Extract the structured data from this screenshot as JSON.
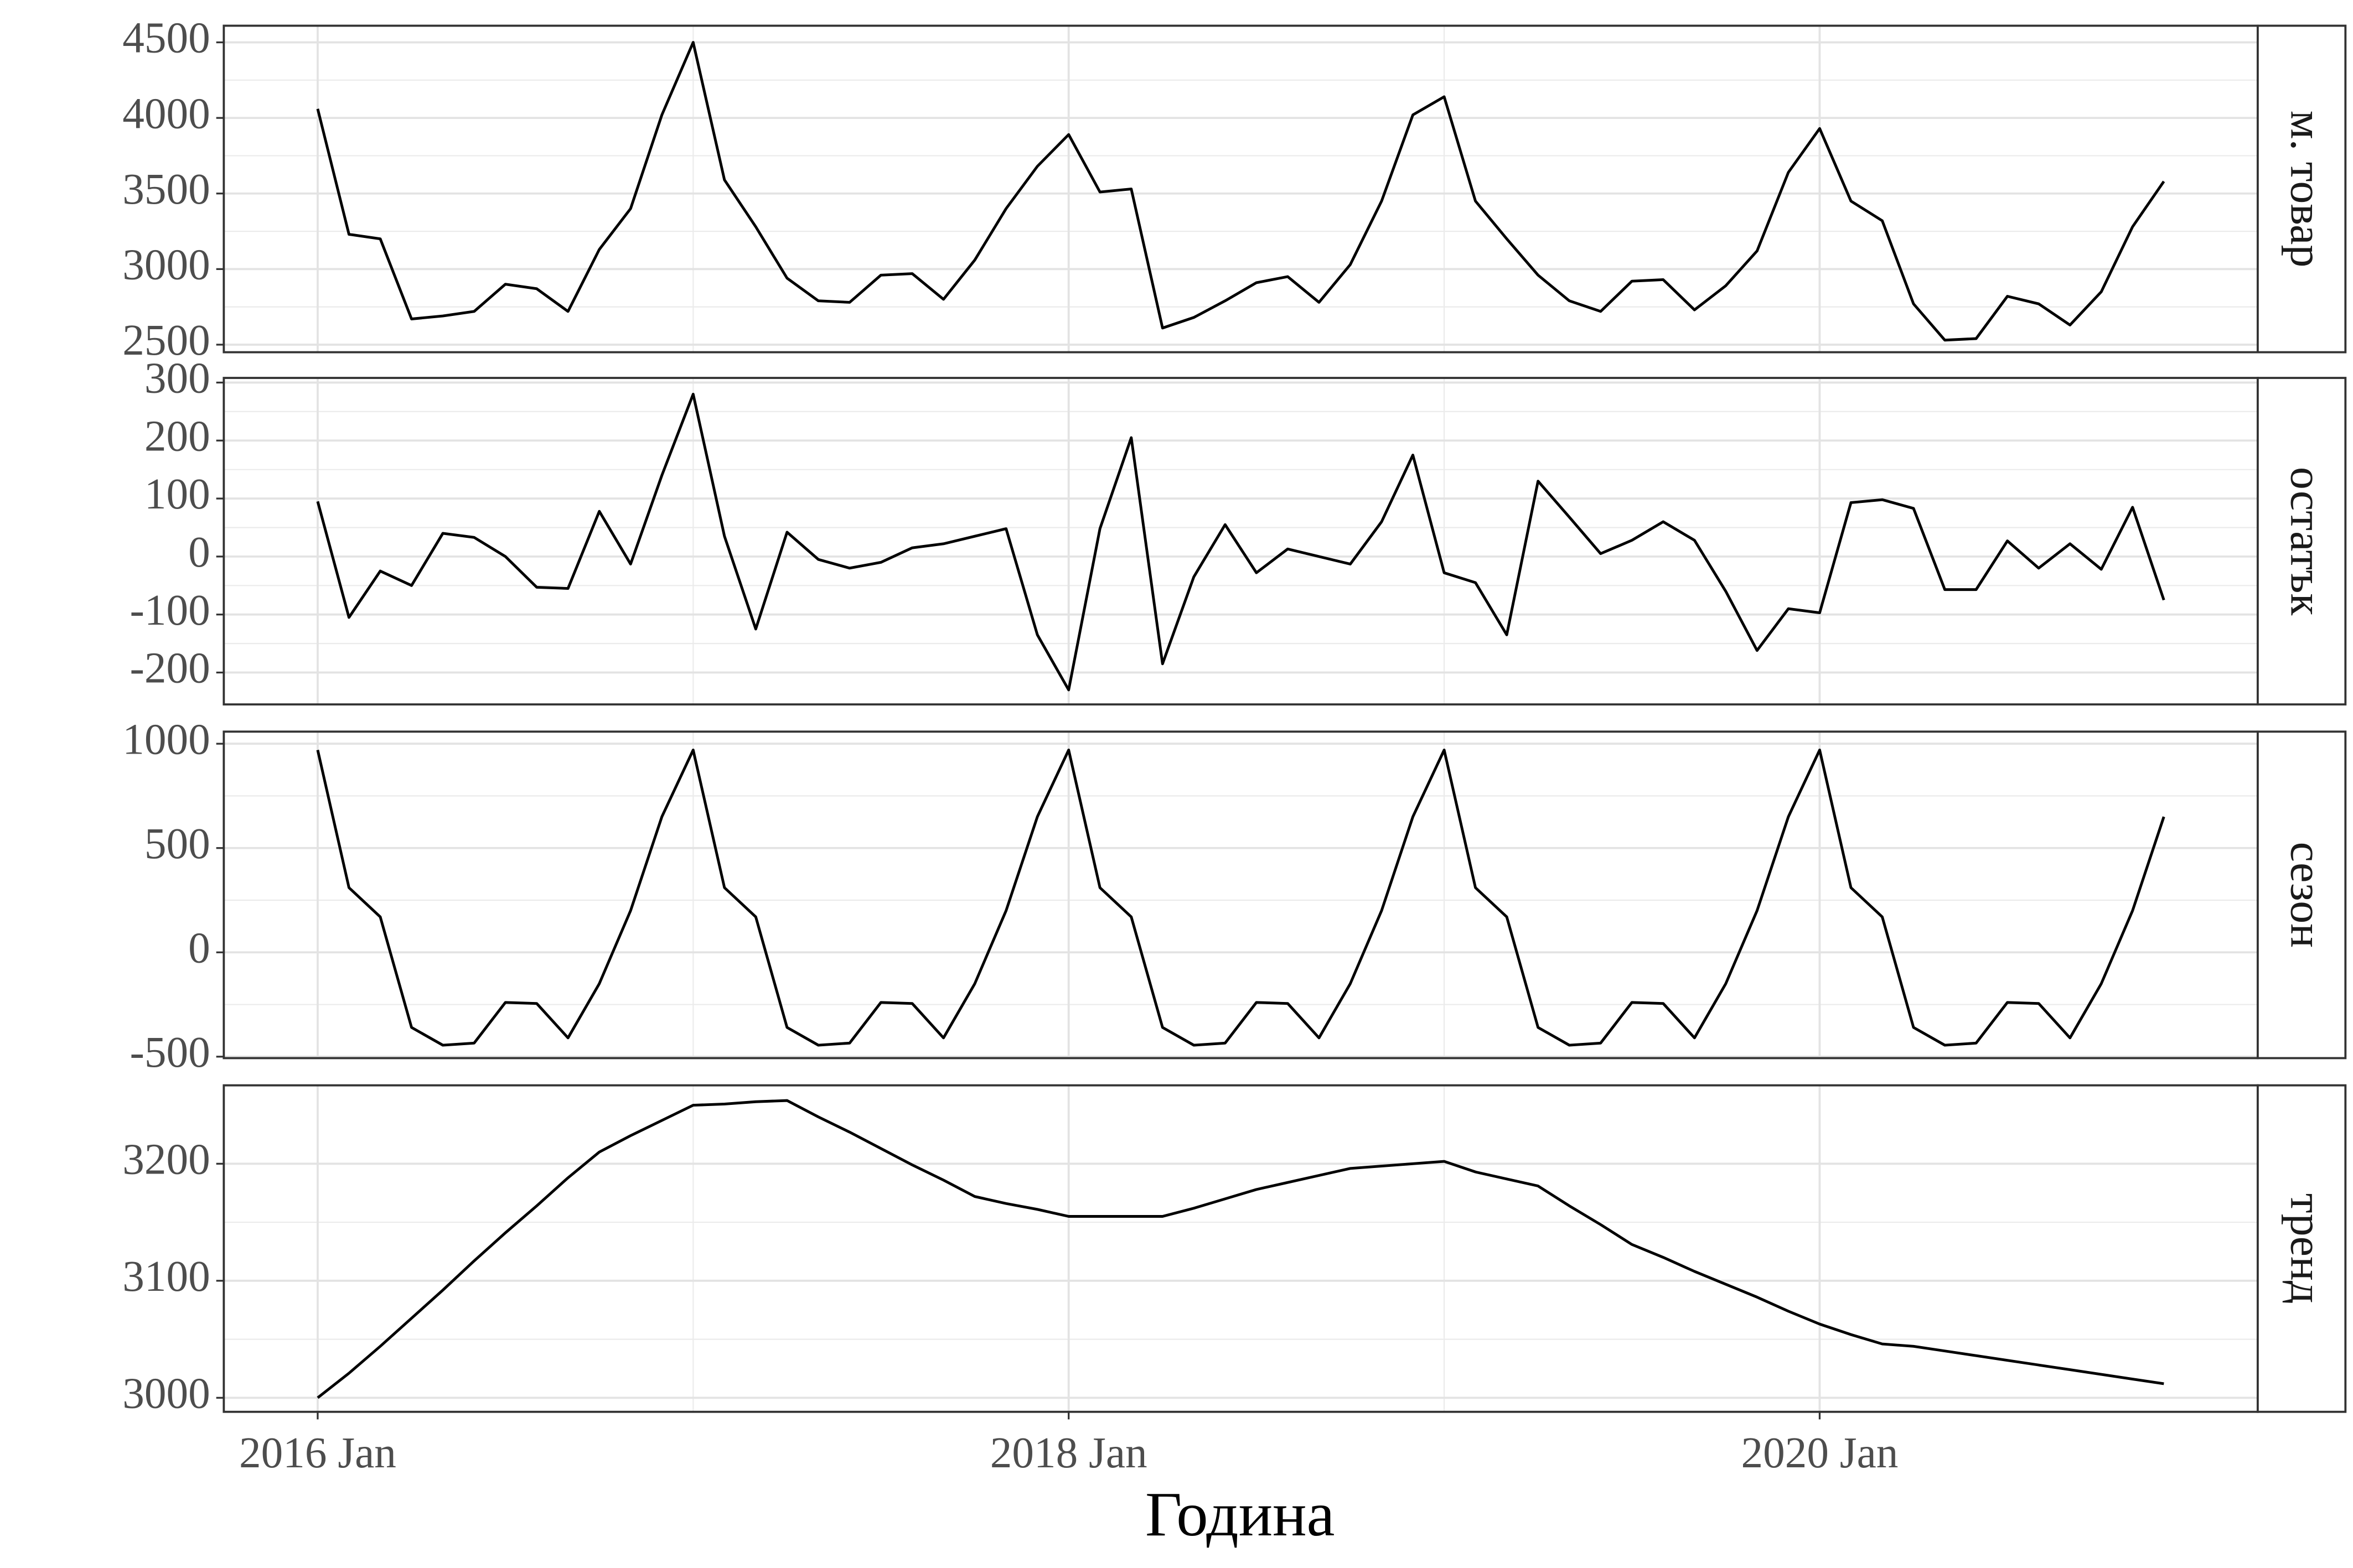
{
  "chart_data": {
    "type": "line",
    "xlabel": "Година",
    "color": "#000000",
    "grid": true,
    "x": [
      "2016 Jan",
      "2016 Feb",
      "2016 Mar",
      "2016 Apr",
      "2016 May",
      "2016 Jun",
      "2016 Jul",
      "2016 Aug",
      "2016 Sep",
      "2016 Oct",
      "2016 Nov",
      "2016 Dec",
      "2017 Jan",
      "2017 Feb",
      "2017 Mar",
      "2017 Apr",
      "2017 May",
      "2017 Jun",
      "2017 Jul",
      "2017 Aug",
      "2017 Sep",
      "2017 Oct",
      "2017 Nov",
      "2017 Dec",
      "2018 Jan",
      "2018 Feb",
      "2018 Mar",
      "2018 Apr",
      "2018 May",
      "2018 Jun",
      "2018 Jul",
      "2018 Aug",
      "2018 Sep",
      "2018 Oct",
      "2018 Nov",
      "2018 Dec",
      "2019 Jan",
      "2019 Feb",
      "2019 Mar",
      "2019 Apr",
      "2019 May",
      "2019 Jun",
      "2019 Jul",
      "2019 Aug",
      "2019 Sep",
      "2019 Oct",
      "2019 Nov",
      "2019 Dec",
      "2020 Jan",
      "2020 Feb",
      "2020 Mar",
      "2020 Apr",
      "2020 May",
      "2020 Jun",
      "2020 Jul",
      "2020 Aug",
      "2020 Sep",
      "2020 Oct",
      "2020 Nov",
      "2020 Dec"
    ],
    "xlim": [
      "2015 Oct",
      "2021 Mar"
    ],
    "xticks": [
      "2016 Jan",
      "2018 Jan",
      "2020 Jan"
    ],
    "facets": [
      {
        "strip": "м. товар",
        "ylim": [
          2450,
          4610
        ],
        "yticks": [
          2500,
          3000,
          3500,
          4000,
          4500
        ],
        "values": [
          4060,
          3230,
          3200,
          2670,
          2690,
          2720,
          2900,
          2870,
          2720,
          3130,
          3400,
          4020,
          4500,
          3590,
          3280,
          2940,
          2790,
          2780,
          2960,
          2970,
          2800,
          3060,
          3400,
          3680,
          3890,
          3510,
          3530,
          2610,
          2680,
          2790,
          2910,
          2950,
          2780,
          3030,
          3450,
          4020,
          4140,
          3450,
          3200,
          2960,
          2790,
          2720,
          2920,
          2930,
          2730,
          2890,
          3120,
          3640,
          3930,
          3450,
          3320,
          2770,
          2530,
          2540,
          2820,
          2770,
          2630,
          2850,
          3280,
          3580
        ]
      },
      {
        "strip": "остатък",
        "ylim": [
          -255,
          308
        ],
        "yticks": [
          -200,
          -100,
          0,
          100,
          200,
          300
        ],
        "values": [
          95,
          -105,
          -25,
          -50,
          40,
          33,
          0,
          -53,
          -55,
          78,
          -13,
          140,
          280,
          35,
          -125,
          42,
          -5,
          -20,
          -10,
          15,
          22,
          35,
          48,
          -135,
          -230,
          48,
          205,
          -185,
          -35,
          55,
          -28,
          13,
          0,
          -13,
          60,
          175,
          -28,
          -45,
          -135,
          130,
          68,
          5,
          28,
          60,
          28,
          -60,
          -162,
          -90,
          -97,
          93,
          98,
          83,
          -57,
          -57,
          27,
          -20,
          22,
          -22,
          85,
          -75
        ]
      },
      {
        "strip": "сезон",
        "ylim": [
          -507,
          1058
        ],
        "yticks": [
          -500,
          0,
          500,
          1000
        ],
        "values": [
          970,
          310,
          170,
          -360,
          -445,
          -435,
          -240,
          -245,
          -410,
          -150,
          200,
          650,
          970,
          310,
          170,
          -360,
          -445,
          -435,
          -240,
          -245,
          -410,
          -150,
          200,
          650,
          970,
          310,
          170,
          -360,
          -445,
          -435,
          -240,
          -245,
          -410,
          -150,
          200,
          650,
          970,
          310,
          170,
          -360,
          -445,
          -435,
          -240,
          -245,
          -410,
          -150,
          200,
          650,
          970,
          310,
          170,
          -360,
          -445,
          -435,
          -240,
          -245,
          -410,
          -150,
          200,
          650
        ]
      },
      {
        "strip": "тренд",
        "ylim": [
          2988,
          3267
        ],
        "yticks": [
          3000,
          3100,
          3200
        ],
        "values": [
          3000,
          3021,
          3044,
          3068,
          3092,
          3117,
          3141,
          3164,
          3188,
          3210,
          3224,
          3237,
          3250,
          3251,
          3253,
          3254,
          3240,
          3227,
          3213,
          3199,
          3186,
          3172,
          3166,
          3161,
          3155,
          3155,
          3155,
          3155,
          3162,
          3170,
          3178,
          3184,
          3190,
          3196,
          3198,
          3200,
          3202,
          3193,
          3187,
          3181,
          3164,
          3148,
          3131,
          3120,
          3108,
          3097,
          3086,
          3074,
          3063,
          3054,
          3046,
          3044,
          3040,
          3036,
          3032,
          3028,
          3024,
          3020,
          3016,
          3012
        ]
      }
    ]
  }
}
